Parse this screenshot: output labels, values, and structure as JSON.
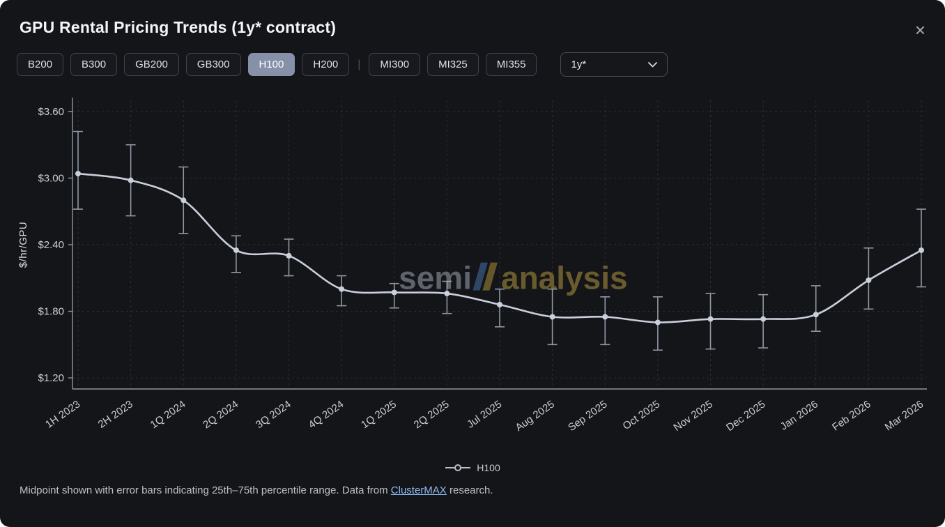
{
  "header": {
    "title": "GPU Rental Pricing Trends (1y* contract)",
    "close_icon": "×"
  },
  "toolbar": {
    "gpu_buttons": [
      {
        "label": "B200",
        "active": false
      },
      {
        "label": "B300",
        "active": false
      },
      {
        "label": "GB200",
        "active": false
      },
      {
        "label": "GB300",
        "active": false
      },
      {
        "label": "H100",
        "active": true
      },
      {
        "label": "H200",
        "active": false
      }
    ],
    "divider": "|",
    "amd_buttons": [
      {
        "label": "MI300",
        "active": false
      },
      {
        "label": "MI325",
        "active": false
      },
      {
        "label": "MI355",
        "active": false
      }
    ],
    "contract_select": {
      "value": "1y*"
    }
  },
  "chart_data": {
    "type": "line",
    "title": "GPU Rental Pricing Trends (1y* contract)",
    "ylabel": "$/hr/GPU",
    "xlabel": "",
    "categories": [
      "1H 2023",
      "2H 2023",
      "1Q 2024",
      "2Q 2024",
      "3Q 2024",
      "4Q 2024",
      "1Q 2025",
      "2Q 2025",
      "Jul 2025",
      "Aug 2025",
      "Sep 2025",
      "Oct 2025",
      "Nov 2025",
      "Dec 2025",
      "Jan 2026",
      "Feb 2026",
      "Mar 2026"
    ],
    "series": [
      {
        "name": "H100",
        "midpoints": [
          3.04,
          2.98,
          2.8,
          2.35,
          2.3,
          2.0,
          1.97,
          1.96,
          1.86,
          1.75,
          1.75,
          1.7,
          1.73,
          1.73,
          1.77,
          2.08,
          2.35
        ],
        "p25": [
          2.72,
          2.66,
          2.5,
          2.15,
          2.12,
          1.85,
          1.83,
          1.78,
          1.66,
          1.5,
          1.5,
          1.45,
          1.46,
          1.47,
          1.62,
          1.82,
          2.02
        ],
        "p75": [
          3.42,
          3.3,
          3.1,
          2.48,
          2.45,
          2.12,
          2.05,
          2.07,
          2.0,
          2.0,
          1.93,
          1.93,
          1.96,
          1.95,
          2.03,
          2.37,
          2.72
        ]
      }
    ],
    "yticks": [
      1.2,
      1.8,
      2.4,
      3.0,
      3.6
    ],
    "ytick_labels": [
      "$1.20",
      "$1.80",
      "$2.40",
      "$3.00",
      "$3.60"
    ],
    "ylim": [
      1.1,
      3.7
    ],
    "grid": true,
    "legend": {
      "label": "H100",
      "position": "bottom"
    },
    "line_color": "#c9d0dc",
    "errorbar_color": "#9098a3",
    "grid_color": "#2a2e35",
    "axis_color": "#9097a1",
    "tick_text_color": "#c9cdd4"
  },
  "watermark": {
    "part1": "semi",
    "part2": "analysis"
  },
  "footer": {
    "text_before": "Midpoint shown with error bars indicating 25th–75th percentile range. Data from ",
    "link": "ClusterMAX",
    "text_after": " research."
  }
}
